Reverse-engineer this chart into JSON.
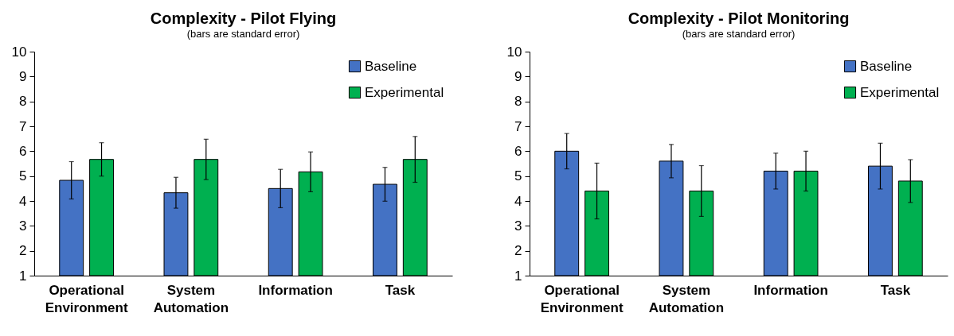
{
  "chart_data": [
    {
      "type": "bar",
      "title": "Complexity - Pilot Flying",
      "subtitle": "(bars are standard error)",
      "categories": [
        "Operational Environment",
        "System Automation",
        "Information",
        "Task"
      ],
      "series": [
        {
          "name": "Baseline",
          "color": "#4472c4",
          "values": [
            4.83,
            4.33,
            4.5,
            4.67
          ],
          "errors": [
            0.75,
            0.62,
            0.77,
            0.68
          ]
        },
        {
          "name": "Experimental",
          "color": "#00b050",
          "values": [
            5.67,
            5.67,
            5.17,
            5.67
          ],
          "errors": [
            0.67,
            0.81,
            0.8,
            0.92
          ]
        }
      ],
      "ylim": [
        1,
        10
      ],
      "yticks": [
        1,
        2,
        3,
        4,
        5,
        6,
        7,
        8,
        9,
        10
      ],
      "grid": false,
      "legend": "top right"
    },
    {
      "type": "bar",
      "title": "Complexity - Pilot Monitoring",
      "subtitle": "(bars are standard error)",
      "categories": [
        "Operational Environment",
        "System Automation",
        "Information",
        "Task"
      ],
      "series": [
        {
          "name": "Baseline",
          "color": "#4472c4",
          "values": [
            6.0,
            5.6,
            5.2,
            5.4
          ],
          "errors": [
            0.71,
            0.67,
            0.72,
            0.92
          ]
        },
        {
          "name": "Experimental",
          "color": "#00b050",
          "values": [
            4.4,
            4.4,
            5.2,
            4.8
          ],
          "errors": [
            1.12,
            1.02,
            0.8,
            0.86
          ]
        }
      ],
      "ylim": [
        1,
        10
      ],
      "yticks": [
        1,
        2,
        3,
        4,
        5,
        6,
        7,
        8,
        9,
        10
      ],
      "grid": false,
      "legend": "top right"
    }
  ]
}
